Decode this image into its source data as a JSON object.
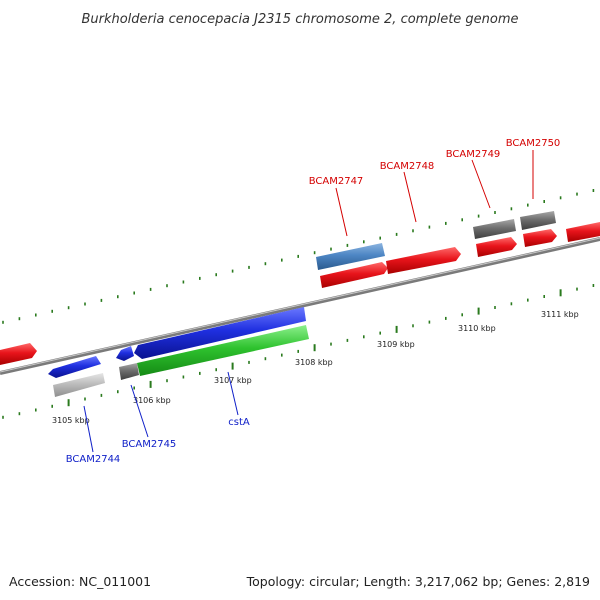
{
  "title": "Burkholderia cenocepacia J2315 chromosome 2, complete genome",
  "footer": {
    "accession": "Accession: NC_011001",
    "topology": "Topology: circular; Length: 3,217,062 bp; Genes: 2,819"
  },
  "colors": {
    "forward_cds": "#e8141b",
    "reverse_cds": "#1f2fe0",
    "cdsa_cds": "#2ec22e",
    "other_feature": "#6e6e6e",
    "light_gray_feature": "#bdbdbd",
    "blue_gray_feature": "#4d86c4",
    "tick_color": "#2a7a1e",
    "backbone": "#8c8c8c",
    "forward_label_color": "#d40000",
    "reverse_label_color": "#1020c8"
  },
  "scale_ticks": [
    {
      "label": "3105 kbp"
    },
    {
      "label": "3106 kbp"
    },
    {
      "label": "3107 kbp"
    },
    {
      "label": "3108 kbp"
    },
    {
      "label": "3109 kbp"
    },
    {
      "label": "3110 kbp"
    },
    {
      "label": "3111 kbp"
    }
  ],
  "genes": [
    {
      "name": "BCAM2744",
      "strand": "reverse"
    },
    {
      "name": "BCAM2745",
      "strand": "reverse"
    },
    {
      "name": "cstA",
      "strand": "reverse"
    },
    {
      "name": "BCAM2747",
      "strand": "forward"
    },
    {
      "name": "BCAM2748",
      "strand": "forward"
    },
    {
      "name": "BCAM2749",
      "strand": "forward"
    },
    {
      "name": "BCAM2750",
      "strand": "forward"
    }
  ]
}
